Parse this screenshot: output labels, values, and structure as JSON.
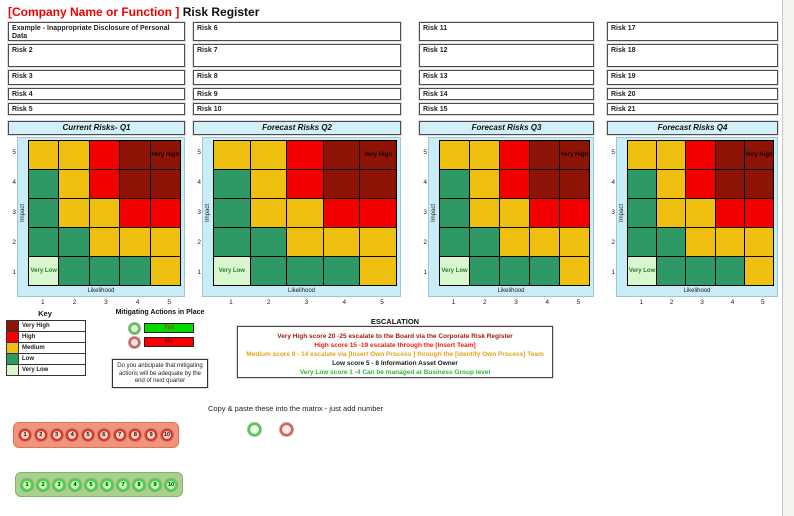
{
  "title": {
    "company": "[Company Name or Function ]",
    "suffix": "Risk Register"
  },
  "risk_lists": [
    [
      "Example - Inappropriate Disclosure of Personal Data",
      "Risk 2",
      "Risk 3",
      "Risk 4",
      "Risk 5"
    ],
    [
      "Risk 6",
      "Risk 7",
      "Risk 8",
      "Risk 9",
      "Risk 10"
    ],
    [
      "Risk 11",
      "Risk 12",
      "Risk 13",
      "Risk 14",
      "Risk 15"
    ],
    [
      "Risk 17",
      "Risk 18",
      "Risk 19",
      "Risk 20",
      "Risk 21"
    ]
  ],
  "quarter_headers": [
    "Current Risks- Q1",
    "Forecast Risks Q2",
    "Forecast Risks Q3",
    "Forecast Risks Q4"
  ],
  "matrix": {
    "y_label": "Impact",
    "x_label": "Likelihood",
    "y_ticks": [
      "5",
      "4",
      "3",
      "2",
      "1"
    ],
    "x_ticks": [
      "1",
      "2",
      "3",
      "4",
      "5"
    ],
    "top_right_label": "Very High",
    "bottom_left_label": "Very Low",
    "rows": [
      [
        "medium",
        "medium",
        "high",
        "very_high",
        "very_high"
      ],
      [
        "low",
        "medium",
        "high",
        "very_high",
        "very_high"
      ],
      [
        "low",
        "medium",
        "medium",
        "high",
        "high"
      ],
      [
        "low",
        "low",
        "medium",
        "medium",
        "medium"
      ],
      [
        "very_low",
        "low",
        "low",
        "low",
        "medium"
      ]
    ],
    "level_colors": {
      "very_high": "#8E1407",
      "high": "#F40000",
      "medium": "#F0C011",
      "low": "#2F9965",
      "very_low": "#D9F7CF"
    },
    "chart_bg": "#C9EDF7",
    "header_bg": "#D2F0F8",
    "top_right_label_color": "#1a0000",
    "bottom_left_label_color": "#2F7C33"
  },
  "key": {
    "title": "Key",
    "items": [
      {
        "label": "Very High",
        "level": "very_high"
      },
      {
        "label": "High",
        "level": "high"
      },
      {
        "label": "Medium",
        "level": "medium"
      },
      {
        "label": "Low",
        "level": "low"
      },
      {
        "label": "Very Low",
        "level": "very_low"
      }
    ]
  },
  "mitigating": {
    "title": "Mitigating Actions in Place",
    "options": [
      {
        "label": "Yes",
        "box_color": "#00DC00",
        "label_color": "#A93226",
        "circle_ring": "#46CE46",
        "circle_fill": "#EFFCEA"
      },
      {
        "label": "No",
        "box_color": "#FB0000",
        "label_color": "#520000",
        "circle_ring": "#E2574B",
        "circle_fill": "#FDEDEA"
      }
    ],
    "question": "Do you anticipate that mitigating actions will be adequate by the end of next quarter"
  },
  "escalation": {
    "title": "ESCALATION",
    "lines": [
      {
        "text": "Very High score 20 -25 escalate to the Board via the Corporate Risk Register",
        "color": "#9E1B0E"
      },
      {
        "text": "High score 15 -19 escalate through the [Insert Team]",
        "color": "#F31A0F"
      },
      {
        "text": "Medium score 9 - 14 escalate via [Insert Own Process ] through the [Identify Own Process] Team",
        "color": "#E7A318"
      },
      {
        "text": "Low score 5 - 8 Information Asset Owner",
        "color": "#1A1A1A"
      },
      {
        "text": "Very Low score 1 -4 Can be managed at Business Group level",
        "color": "#2EB838"
      }
    ]
  },
  "copy_paste": {
    "label": "Copy & paste these into the matrix - just add number",
    "markers": [
      {
        "name": "green-marker",
        "ring": "#46CE46",
        "fill": "#EFFCEA"
      },
      {
        "name": "red-marker",
        "ring": "#E2574B",
        "fill": "#FDEDEA"
      }
    ]
  },
  "number_strips": [
    {
      "name": "red",
      "bg": "#F2937B",
      "border": "#D8775C",
      "ring": "#DD3124",
      "fill": "#F6CFC6",
      "numbers": [
        "1",
        "2",
        "3",
        "4",
        "5",
        "6",
        "7",
        "8",
        "9",
        "10"
      ]
    },
    {
      "name": "green",
      "bg": "#A7D18D",
      "border": "#7FB566",
      "ring": "#3FDD3F",
      "fill": "#CDF6C4",
      "numbers": [
        "1",
        "2",
        "3",
        "4",
        "5",
        "6",
        "7",
        "8",
        "9",
        "10"
      ]
    }
  ]
}
